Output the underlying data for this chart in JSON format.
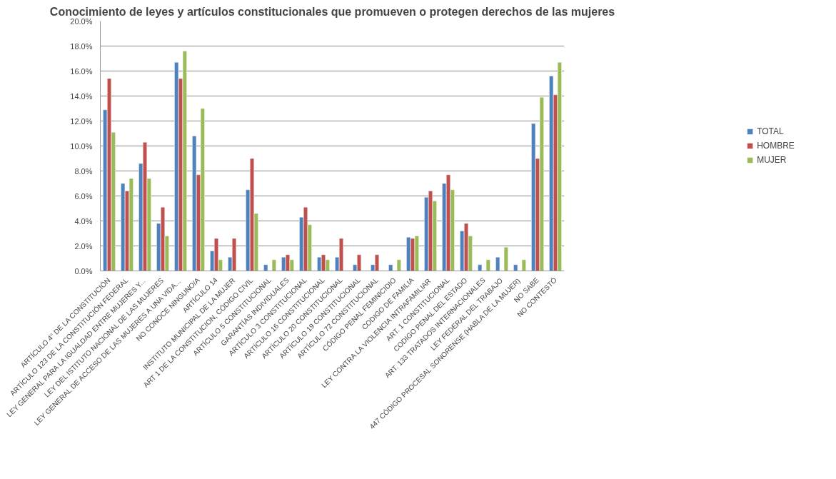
{
  "chart_data": {
    "type": "bar",
    "title": "Conocimiento de leyes y artículos constitucionales que promueven o protegen derechos de las mujeres",
    "categories": [
      "ARTÍCULO 4° DE LA CONSTITUCIÓN",
      "ARTÍCULO 123 DE LA CONSTITUCIÓN FEDERAL",
      "LEY GENERAL PARA LA IGUALDAD ENTRE MUJERES Y...",
      "LEY DEL ISTITUTO NACIONAL DE LAS MUJERES",
      "LEY GENERAL DE ACCESO DE LAS MUJERES A UNA VIDA...",
      "NO CONOCE NINGUNO/A",
      "ARTÍCULO 14",
      "INSTITUTO MUNICIPAL DE LA MUJER",
      "ART 1 DE LA CONSTITUCION, CÓDIGO CIVIL",
      "ARTÍCULO 5 CONSTITUCIONAL",
      "GARANTÍAS INDIVIDUALES",
      "ARTÍCULO 3 CONSTITUCIONAL",
      "ARTÍCULO 16 CONSTITUCIONAL",
      "ARTÍCULO 20 CONSTITUCIONAL",
      "ARTÍCULO 19 CONSTITUCIONAL",
      "ARTÍCULO 72 CONSTITUCIONAL",
      "CÓDIGO PENAL FEMINICIDIO",
      "CODIGO DE FAMILIA",
      "LEY CONTRA LA VIOLENCIA INTRAFAMILIAR",
      "ART. 1 CONSTITUCIONAL",
      "CODIGO PENAL DEL ESTADO",
      "ART. 133 TRATADOS INTERNACIONALES",
      "LEY FEDERAL DEL TRABAJO",
      "447 CÓDIGO PROCESAL SONORENSE (HABLA DE LA MUJER)",
      "NO SABE",
      "NO CONTESTÓ"
    ],
    "series": [
      {
        "name": "TOTAL",
        "color": "#4f81bd",
        "values": [
          12.9,
          7.0,
          8.6,
          3.8,
          16.7,
          10.8,
          1.6,
          1.1,
          6.5,
          0.5,
          1.1,
          4.3,
          1.1,
          1.1,
          0.5,
          0.5,
          0.5,
          2.7,
          5.9,
          7.0,
          3.2,
          0.5,
          1.1,
          0.5,
          11.8,
          15.6
        ]
      },
      {
        "name": "HOMBRE",
        "color": "#c0504d",
        "values": [
          15.4,
          6.4,
          10.3,
          5.1,
          15.4,
          7.7,
          2.6,
          2.6,
          9.0,
          null,
          1.3,
          5.1,
          1.3,
          2.6,
          1.3,
          1.3,
          null,
          2.6,
          6.4,
          7.7,
          3.8,
          null,
          null,
          null,
          9.0,
          14.1
        ]
      },
      {
        "name": "MUJER",
        "color": "#9bbb59",
        "values": [
          11.1,
          7.4,
          7.4,
          2.8,
          17.6,
          13.0,
          0.9,
          null,
          4.6,
          0.9,
          0.9,
          3.7,
          0.9,
          null,
          null,
          null,
          0.9,
          2.8,
          5.6,
          6.5,
          2.8,
          0.9,
          1.9,
          0.9,
          13.9,
          16.7
        ]
      }
    ],
    "ylim": [
      0,
      20
    ],
    "yticks": [
      {
        "value": 0,
        "label": "0.0%"
      },
      {
        "value": 2,
        "label": "2.0%"
      },
      {
        "value": 4,
        "label": "4.0%"
      },
      {
        "value": 6,
        "label": "6.0%"
      },
      {
        "value": 8,
        "label": "8.0%"
      },
      {
        "value": 10,
        "label": "10.0%"
      },
      {
        "value": 12,
        "label": "12.0%"
      },
      {
        "value": 14,
        "label": "14.0%"
      },
      {
        "value": 16,
        "label": "16.0%"
      },
      {
        "value": 18,
        "label": "18.0%"
      },
      {
        "value": 20,
        "label": "20.0%"
      }
    ],
    "grid": "y",
    "legend": "right"
  }
}
